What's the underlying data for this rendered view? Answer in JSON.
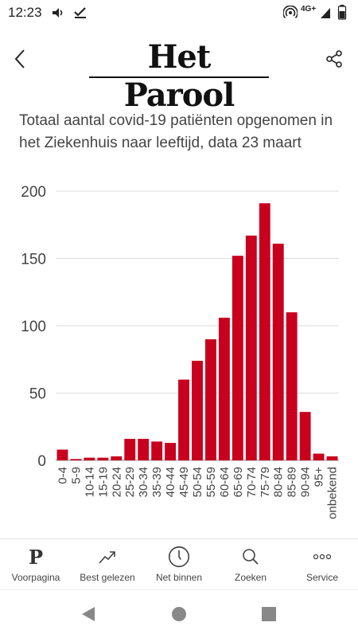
{
  "status": {
    "time": "12:23",
    "network": "4G+"
  },
  "header": {
    "logo_text": "Het Parool"
  },
  "chart_data": {
    "type": "bar",
    "title": "Totaal aantal covid-19 patiënten opgenomen in het Ziekenhuis naar leeftijd, data 23 maart",
    "categories": [
      "0-4",
      "5-9",
      "10-14",
      "15-19",
      "20-24",
      "25-29",
      "30-34",
      "35-39",
      "40-44",
      "45-49",
      "50-54",
      "55-59",
      "60-64",
      "65-69",
      "70-74",
      "75-79",
      "80-84",
      "85-89",
      "90-94",
      "95+",
      "onbekend"
    ],
    "values": [
      8,
      1,
      2,
      2,
      3,
      16,
      16,
      14,
      13,
      60,
      74,
      90,
      106,
      152,
      167,
      191,
      161,
      110,
      36,
      5,
      3
    ],
    "yticks": [
      0,
      50,
      100,
      150,
      200
    ],
    "ylim": [
      0,
      200
    ],
    "bar_color": "#c8001e",
    "grid": true
  },
  "nav": {
    "items": [
      {
        "label": "Voorpagina",
        "icon": "parool-p-icon"
      },
      {
        "label": "Best gelezen",
        "icon": "trending-icon"
      },
      {
        "label": "Net binnen",
        "icon": "clock-icon"
      },
      {
        "label": "Zoeken",
        "icon": "search-icon"
      },
      {
        "label": "Service",
        "icon": "more-icon"
      }
    ]
  }
}
